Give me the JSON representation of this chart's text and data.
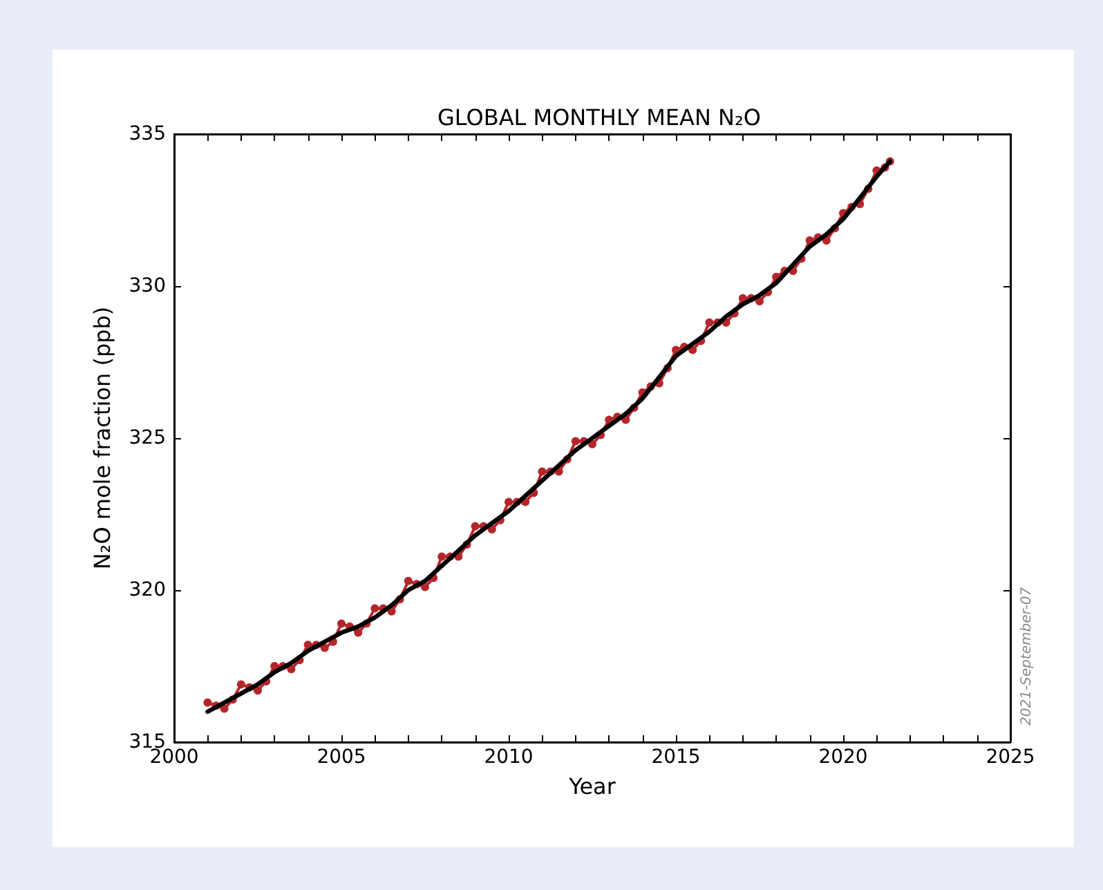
{
  "chart_data": {
    "type": "line",
    "title": "GLOBAL MONTHLY MEAN N₂O",
    "xlabel": "Year",
    "ylabel": "N₂O mole fraction (ppb)",
    "annotations": [
      "2021-September-07"
    ],
    "xlim": [
      2000,
      2025
    ],
    "ylim": [
      315,
      335
    ],
    "xticks": [
      2000,
      {
        "value": 2001,
        "label": null
      },
      {
        "value": 2002,
        "label": null
      },
      {
        "value": 2003,
        "label": null
      },
      {
        "value": 2004,
        "label": null
      },
      2005,
      {
        "value": 2006,
        "label": null
      },
      {
        "value": 2007,
        "label": null
      },
      {
        "value": 2008,
        "label": null
      },
      {
        "value": 2009,
        "label": null
      },
      2010,
      {
        "value": 2011,
        "label": null
      },
      {
        "value": 2012,
        "label": null
      },
      {
        "value": 2013,
        "label": null
      },
      {
        "value": 2014,
        "label": null
      },
      2015,
      {
        "value": 2016,
        "label": null
      },
      {
        "value": 2017,
        "label": null
      },
      {
        "value": 2018,
        "label": null
      },
      {
        "value": 2019,
        "label": null
      },
      2020,
      {
        "value": 2021,
        "label": null
      },
      {
        "value": 2022,
        "label": null
      },
      {
        "value": 2023,
        "label": null
      },
      {
        "value": 2024,
        "label": null
      },
      2025
    ],
    "yticks": [
      315,
      320,
      325,
      330,
      335
    ],
    "series": [
      {
        "color": "#b5262b",
        "marker": "circle",
        "x": [
          2001.0,
          2001.25,
          2001.5,
          2001.75,
          2002.0,
          2002.25,
          2002.5,
          2002.75,
          2003.0,
          2003.25,
          2003.5,
          2003.75,
          2004.0,
          2004.25,
          2004.5,
          2004.75,
          2005.0,
          2005.25,
          2005.5,
          2005.75,
          2006.0,
          2006.25,
          2006.5,
          2006.75,
          2007.0,
          2007.25,
          2007.5,
          2007.75,
          2008.0,
          2008.25,
          2008.5,
          2008.75,
          2009.0,
          2009.25,
          2009.5,
          2009.75,
          2010.0,
          2010.25,
          2010.5,
          2010.75,
          2011.0,
          2011.25,
          2011.5,
          2011.75,
          2012.0,
          2012.25,
          2012.5,
          2012.75,
          2013.0,
          2013.25,
          2013.5,
          2013.75,
          2014.0,
          2014.25,
          2014.5,
          2014.75,
          2015.0,
          2015.25,
          2015.5,
          2015.75,
          2016.0,
          2016.25,
          2016.5,
          2016.75,
          2017.0,
          2017.25,
          2017.5,
          2017.75,
          2018.0,
          2018.25,
          2018.5,
          2018.75,
          2019.0,
          2019.25,
          2019.5,
          2019.75,
          2020.0,
          2020.25,
          2020.5,
          2020.75,
          2021.0,
          2021.25,
          2021.4
        ],
        "values": [
          316.3,
          316.2,
          316.1,
          316.4,
          316.9,
          316.8,
          316.7,
          317.0,
          317.5,
          317.5,
          317.4,
          317.7,
          318.2,
          318.2,
          318.1,
          318.3,
          318.9,
          318.8,
          318.6,
          318.9,
          319.4,
          319.4,
          319.3,
          319.7,
          320.3,
          320.2,
          320.1,
          320.4,
          321.1,
          321.1,
          321.1,
          321.5,
          322.1,
          322.1,
          322.0,
          322.3,
          322.9,
          322.9,
          322.9,
          323.2,
          323.9,
          323.9,
          323.9,
          324.3,
          324.9,
          324.9,
          324.8,
          325.1,
          325.6,
          325.7,
          325.6,
          326.0,
          326.5,
          326.7,
          326.8,
          327.3,
          327.9,
          328.0,
          327.9,
          328.2,
          328.8,
          328.8,
          328.8,
          329.1,
          329.6,
          329.6,
          329.5,
          329.8,
          330.3,
          330.5,
          330.5,
          330.9,
          331.5,
          331.6,
          331.5,
          331.9,
          332.4,
          332.6,
          332.7,
          333.2,
          333.8,
          333.9,
          334.1
        ]
      },
      {
        "color": "#000000",
        "marker": "none",
        "x": [
          2001.0,
          2001.5,
          2002.0,
          2002.5,
          2003.0,
          2003.5,
          2004.0,
          2004.5,
          2005.0,
          2005.5,
          2006.0,
          2006.5,
          2007.0,
          2007.5,
          2008.0,
          2008.5,
          2009.0,
          2009.5,
          2010.0,
          2010.5,
          2011.0,
          2011.5,
          2012.0,
          2012.5,
          2013.0,
          2013.5,
          2014.0,
          2014.5,
          2015.0,
          2015.5,
          2016.0,
          2016.5,
          2017.0,
          2017.5,
          2018.0,
          2018.5,
          2019.0,
          2019.5,
          2020.0,
          2020.5,
          2021.0,
          2021.4
        ],
        "values": [
          316.0,
          316.3,
          316.6,
          316.9,
          317.3,
          317.6,
          318.0,
          318.3,
          318.6,
          318.8,
          319.1,
          319.5,
          320.0,
          320.3,
          320.8,
          321.3,
          321.8,
          322.2,
          322.6,
          323.1,
          323.6,
          324.1,
          324.6,
          325.0,
          325.4,
          325.8,
          326.3,
          327.0,
          327.7,
          328.1,
          328.5,
          329.0,
          329.4,
          329.7,
          330.1,
          330.7,
          331.3,
          331.7,
          332.2,
          332.9,
          333.6,
          334.1
        ]
      }
    ]
  }
}
